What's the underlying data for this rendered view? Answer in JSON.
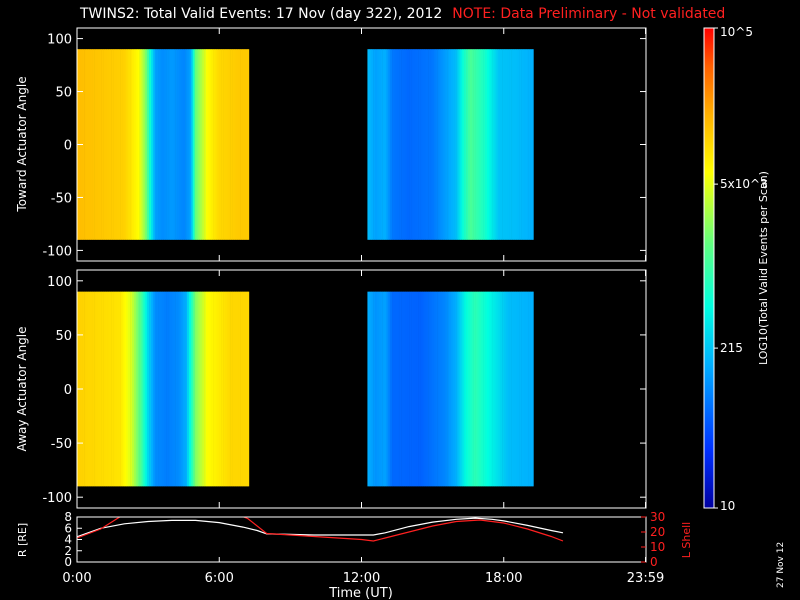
{
  "title": "TWINS2: Total Valid Events: 17 Nov (day 322), 2012",
  "note": "NOTE: Data Preliminary - Not validated",
  "date_stamp": "27 Nov 12",
  "chart_data": [
    {
      "type": "heatmap",
      "name": "toward",
      "ylabel": "Toward Actuator Angle",
      "ylim": [
        -110,
        110
      ],
      "yticks": [
        100,
        50,
        0,
        -50,
        -100
      ],
      "angle_range": [
        -90,
        90
      ],
      "data_blocks": [
        [
          0.0,
          7.25
        ],
        [
          12.25,
          19.25
        ]
      ],
      "time_profile": [
        [
          0.0,
          0.8
        ],
        [
          2.0,
          0.77
        ],
        [
          2.6,
          0.7
        ],
        [
          2.9,
          0.58
        ],
        [
          3.1,
          0.42
        ],
        [
          3.3,
          0.28
        ],
        [
          3.6,
          0.25
        ],
        [
          4.0,
          0.27
        ],
        [
          4.5,
          0.24
        ],
        [
          4.8,
          0.28
        ],
        [
          5.0,
          0.55
        ],
        [
          5.5,
          0.7
        ],
        [
          6.0,
          0.76
        ],
        [
          6.8,
          0.78
        ],
        [
          7.25,
          0.78
        ],
        [
          12.25,
          0.32
        ],
        [
          12.6,
          0.28
        ],
        [
          13.0,
          0.3
        ],
        [
          13.3,
          0.22
        ],
        [
          14.0,
          0.2
        ],
        [
          15.0,
          0.22
        ],
        [
          15.5,
          0.27
        ],
        [
          16.0,
          0.32
        ],
        [
          16.3,
          0.44
        ],
        [
          16.6,
          0.52
        ],
        [
          17.2,
          0.45
        ],
        [
          17.8,
          0.33
        ],
        [
          18.5,
          0.32
        ],
        [
          19.25,
          0.3
        ]
      ]
    },
    {
      "type": "heatmap",
      "name": "away",
      "ylabel": "Away Actuator Angle",
      "ylim": [
        -110,
        110
      ],
      "yticks": [
        100,
        50,
        0,
        -50,
        -100
      ],
      "angle_range": [
        -90,
        90
      ],
      "data_blocks": [
        [
          0.0,
          7.25
        ],
        [
          12.25,
          19.25
        ]
      ],
      "time_profile": [
        [
          0.0,
          0.77
        ],
        [
          1.8,
          0.74
        ],
        [
          2.3,
          0.66
        ],
        [
          2.7,
          0.52
        ],
        [
          3.0,
          0.36
        ],
        [
          3.3,
          0.25
        ],
        [
          3.8,
          0.23
        ],
        [
          4.3,
          0.25
        ],
        [
          4.6,
          0.3
        ],
        [
          5.0,
          0.58
        ],
        [
          5.5,
          0.7
        ],
        [
          6.5,
          0.76
        ],
        [
          7.25,
          0.76
        ],
        [
          12.25,
          0.3
        ],
        [
          12.6,
          0.26
        ],
        [
          13.0,
          0.28
        ],
        [
          13.3,
          0.2
        ],
        [
          14.5,
          0.19
        ],
        [
          15.5,
          0.24
        ],
        [
          16.0,
          0.3
        ],
        [
          16.4,
          0.42
        ],
        [
          16.8,
          0.48
        ],
        [
          17.5,
          0.4
        ],
        [
          18.2,
          0.32
        ],
        [
          19.25,
          0.3
        ]
      ]
    },
    {
      "type": "line",
      "name": "orbit",
      "ylabel_left": "R [RE]",
      "ylabel_right": "L Shell",
      "xlabel": "Time (UT)",
      "xticks": [
        "0:00",
        "6:00",
        "12:00",
        "18:00",
        "23:59"
      ],
      "xtick_values": [
        0,
        6,
        12,
        18,
        23.98
      ],
      "xlim": [
        0,
        24
      ],
      "ylim_left": [
        0,
        8
      ],
      "yticks_left": [
        8,
        6,
        4,
        2,
        0
      ],
      "ylim_right": [
        0,
        30
      ],
      "yticks_right": [
        30,
        20,
        10,
        0
      ],
      "series": [
        {
          "color": "#ffffff",
          "axis": "left",
          "x": [
            0,
            1,
            2,
            3,
            4,
            5,
            6,
            7,
            7.6,
            8,
            9,
            10,
            11,
            12,
            12.5,
            13,
            14,
            15,
            16,
            16.8,
            17.5,
            18,
            19,
            20,
            20.5
          ],
          "y": [
            4.5,
            6.0,
            6.8,
            7.2,
            7.4,
            7.4,
            7.0,
            6.2,
            5.6,
            5.0,
            4.9,
            4.8,
            4.8,
            4.8,
            4.8,
            5.2,
            6.3,
            7.1,
            7.6,
            7.8,
            7.6,
            7.3,
            6.5,
            5.6,
            5.2
          ]
        },
        {
          "color": "#ff2020",
          "axis": "right",
          "x": [
            0,
            1,
            1.8,
            2.2,
            6.7,
            7.2,
            8,
            10,
            12,
            12.5,
            13,
            14,
            15,
            16,
            17,
            18,
            19,
            20,
            20.5
          ],
          "y": [
            16,
            22,
            30,
            32,
            32,
            29,
            19,
            17,
            15,
            14,
            16,
            20,
            24,
            27,
            28,
            26,
            22,
            17,
            14
          ]
        }
      ]
    }
  ],
  "colorbar": {
    "label": "LOG10(Total Valid Events per Scan)",
    "tick_labels": [
      "10",
      "215",
      "5x10^3",
      "10^5"
    ],
    "tick_values": [
      10,
      215,
      5000,
      100000
    ],
    "min": 10,
    "max": 100000
  }
}
